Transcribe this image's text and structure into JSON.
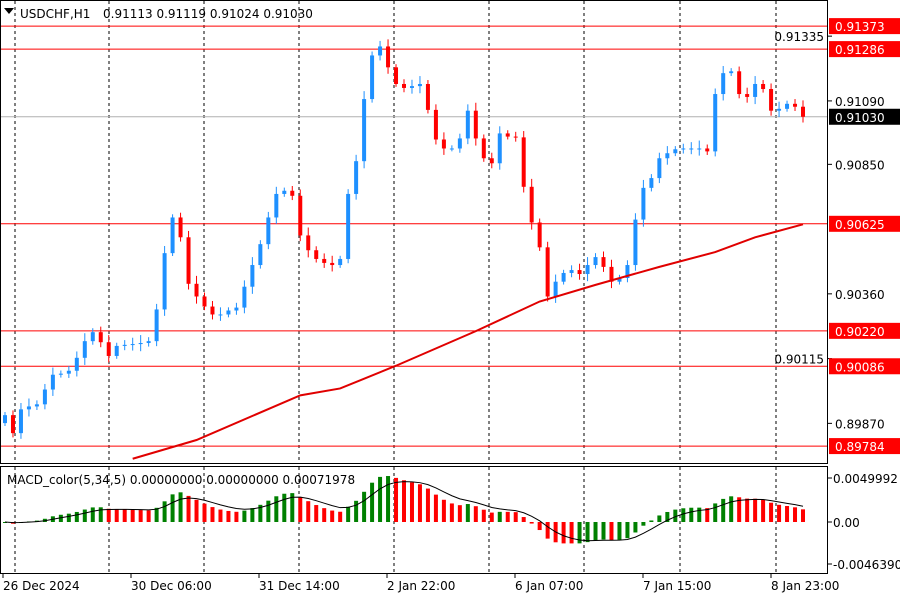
{
  "header": {
    "symbol": "USDCHF,H1",
    "ohlc": "0.91113 0.91119 0.91024 0.91030"
  },
  "macd_header": "MACD_color(5,34,5) 0.00000000 0.00000000 0.00071978",
  "colors": {
    "bull": "#1e90ff",
    "bear": "#ff0000",
    "level": "#ff0000",
    "ma": "#e00000",
    "macd_up": "#008000",
    "macd_down": "#ff0000"
  },
  "chart_data": {
    "type": "candlestick",
    "title": "USDCHF,H1",
    "price_ticks": [
      "0.91335",
      "0.91090",
      "0.90850",
      "0.90360",
      "0.90115",
      "0.89870"
    ],
    "price_tick_values": [
      0.91335,
      0.9109,
      0.9085,
      0.9036,
      0.90115,
      0.8987
    ],
    "ylim": [
      0.8972,
      0.91468
    ],
    "levels": [
      {
        "label": "0.91373",
        "value": 0.91373
      },
      {
        "label": "0.91286",
        "value": 0.91286
      },
      {
        "label": "0.90625",
        "value": 0.90625
      },
      {
        "label": "0.90220",
        "value": 0.9022
      },
      {
        "label": "0.90086",
        "value": 0.90086
      },
      {
        "label": "0.89784",
        "value": 0.89784
      }
    ],
    "current_price": {
      "label": "0.91030",
      "value": 0.9103
    },
    "time_labels": [
      "26 Dec 2024",
      "30 Dec 06:00",
      "31 Dec 14:00",
      "2 Jan 22:00",
      "6 Jan 07:00",
      "7 Jan 15:00",
      "8 Jan 23:00"
    ],
    "closes": [
      0.89901,
      0.89833,
      0.89923,
      0.89934,
      0.89942,
      0.89998,
      0.90054,
      0.90058,
      0.90069,
      0.90118,
      0.90181,
      0.90215,
      0.90177,
      0.90125,
      0.90163,
      0.90167,
      0.9017,
      0.90174,
      0.90181,
      0.90301,
      0.90514,
      0.90649,
      0.90574,
      0.90398,
      0.9035,
      0.90312,
      0.90282,
      0.90282,
      0.90297,
      0.90308,
      0.90387,
      0.90469,
      0.90548,
      0.90649,
      0.90738,
      0.9075,
      0.90731,
      0.90581,
      0.90525,
      0.90492,
      0.90477,
      0.90469,
      0.90492,
      0.90738,
      0.90862,
      0.91097,
      0.91262,
      0.91296,
      0.91217,
      0.91154,
      0.91139,
      0.91146,
      0.91154,
      0.91056,
      0.90944,
      0.9091,
      0.9091,
      0.90948,
      0.91053,
      0.90948,
      0.90873,
      0.90854,
      0.90967,
      0.90955,
      0.90952,
      0.90765,
      0.9063,
      0.90536,
      0.9035,
      0.90406,
      0.90439,
      0.9045,
      0.90435,
      0.90469,
      0.90499,
      0.90462,
      0.90406,
      0.9042,
      0.90469,
      0.90641,
      0.90761,
      0.90798,
      0.90873,
      0.90892,
      0.90907,
      0.9091,
      0.9091,
      0.9091,
      0.90899,
      0.91116,
      0.91195,
      0.91202,
      0.91116,
      0.91105,
      0.91154,
      0.91135,
      0.91053,
      0.9106,
      0.91079,
      0.91068,
      0.9103
    ],
    "moving_average": [
      [
        16,
        0.89736
      ],
      [
        24,
        0.89807
      ],
      [
        37,
        0.89976
      ],
      [
        42,
        0.90002
      ],
      [
        49,
        0.90088
      ],
      [
        59,
        0.90219
      ],
      [
        67,
        0.90331
      ],
      [
        74,
        0.90394
      ],
      [
        82,
        0.90462
      ],
      [
        89,
        0.90518
      ],
      [
        94,
        0.90574
      ],
      [
        100,
        0.90623
      ]
    ],
    "macd": {
      "label": "MACD_color(5,34,5)",
      "ticks": [
        "0.0049992",
        "0.00",
        "-0.0046390"
      ],
      "tick_values": [
        0.0049992,
        0,
        -0.004639
      ]
    }
  }
}
